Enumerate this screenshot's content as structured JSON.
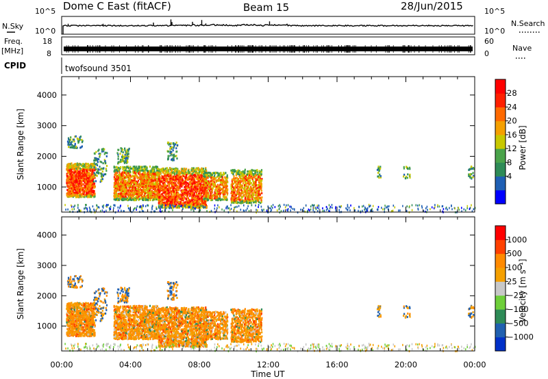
{
  "header": {
    "station": "Dome C East (fitACF)",
    "beam": "Beam 15",
    "date": "28/Jun/2015"
  },
  "top_panels": {
    "nsky_label": "N.Sky",
    "nsky_ticks": [
      "10^5",
      "10^0"
    ],
    "nsearch_label": "N.Search",
    "nsearch_ticks": [
      "10^5",
      "10^0"
    ],
    "freq_label": "Freq.",
    "freq_unit": "[MHz]",
    "freq_ticks": [
      "18",
      "8"
    ],
    "nave_label": "Nave",
    "nave_ticks": [
      "60",
      "0"
    ],
    "cpid_label": "CPID",
    "cpid_value": "twofsound 3501"
  },
  "colors": {
    "power_scale": [
      "#0000ff",
      "#1f5fb4",
      "#2e8b57",
      "#4aa34a",
      "#c8c800",
      "#f5a000",
      "#ff6a00",
      "#ff2000",
      "#ff0000"
    ],
    "velocity_scale": [
      "#0030c8",
      "#2060b0",
      "#2e8b57",
      "#6ecf3a",
      "#c8c8c8",
      "#f5a000",
      "#ff8a00",
      "#ff4000",
      "#ff0000"
    ]
  },
  "chart_data": [
    {
      "type": "heatmap",
      "name": "power",
      "xlabel": "",
      "ylabel": "Slant Range [km]",
      "x_ticks": [
        "00:00",
        "04:00",
        "08:00",
        "12:00",
        "16:00",
        "20:00",
        "00:00"
      ],
      "xlim_hours": [
        0,
        24
      ],
      "ylim": [
        180,
        4600
      ],
      "y_ticks": [
        1000,
        2000,
        3000,
        4000
      ],
      "colorbar_label": "Power [dB]",
      "colorbar_ticks": [
        "28",
        "24",
        "20",
        "16",
        "12",
        "8",
        "4"
      ],
      "colorbar_range": [
        0,
        32
      ]
    },
    {
      "type": "heatmap",
      "name": "velocity",
      "xlabel": "Time UT",
      "ylabel": "Slant Range [km]",
      "x_ticks": [
        "00:00",
        "04:00",
        "08:00",
        "12:00",
        "16:00",
        "20:00",
        "00:00"
      ],
      "xlim_hours": [
        0,
        24
      ],
      "ylim": [
        180,
        4600
      ],
      "y_ticks": [
        1000,
        2000,
        3000,
        4000
      ],
      "colorbar_label": "Velocity [m s⁻¹]",
      "colorbar_ticks": [
        "1000",
        "500",
        "100",
        "25",
        "−25",
        "−100",
        "−500",
        "−1000"
      ]
    }
  ]
}
